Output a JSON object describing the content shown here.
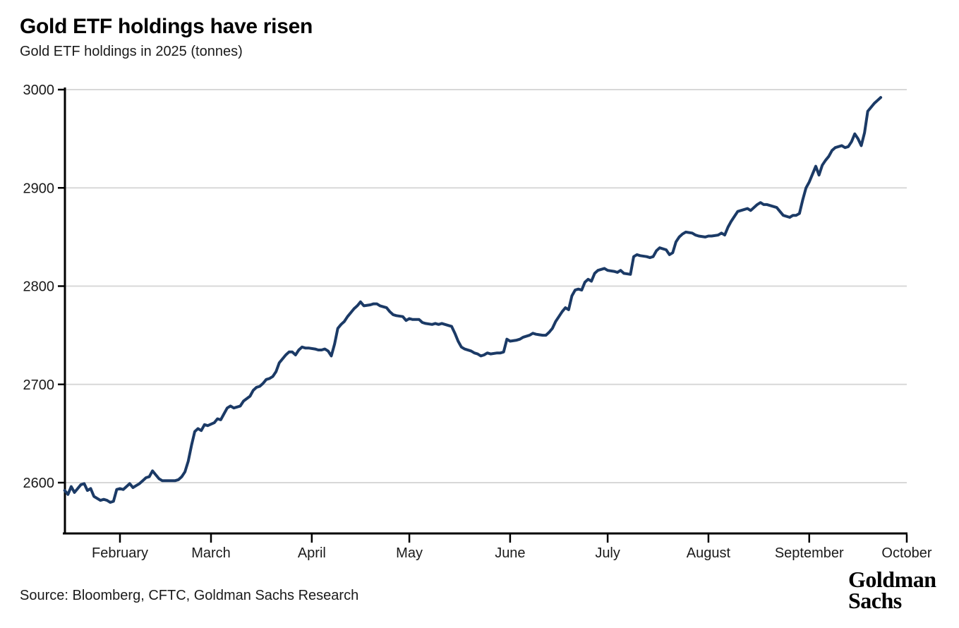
{
  "header": {
    "title": "Gold ETF holdings have risen",
    "subtitle": "Gold ETF holdings in 2025 (tonnes)"
  },
  "footer": {
    "source": "Source: Bloomberg, CFTC, Goldman Sachs Research",
    "logo_line1": "Goldman",
    "logo_line2": "Sachs"
  },
  "chart_data": {
    "type": "line",
    "title": "Gold ETF holdings have risen",
    "subtitle": "Gold ETF holdings in 2025 (tonnes)",
    "xlabel": "",
    "ylabel": "tonnes",
    "y_ticks": [
      2600,
      2700,
      2800,
      2900,
      3000
    ],
    "y_range": [
      2548,
      3000
    ],
    "x_range": [
      "Jan 15",
      "Oct 1"
    ],
    "x_ticks": [
      {
        "label": "February",
        "date": "Feb 1"
      },
      {
        "label": "March",
        "date": "Mar 1"
      },
      {
        "label": "April",
        "date": "Apr 1"
      },
      {
        "label": "May",
        "date": "May 1"
      },
      {
        "label": "June",
        "date": "Jun 1"
      },
      {
        "label": "July",
        "date": "Jul 1"
      },
      {
        "label": "August",
        "date": "Aug 1"
      },
      {
        "label": "September",
        "date": "Sep 1"
      },
      {
        "label": "October",
        "date": "Oct 1"
      }
    ],
    "grid": "horizontal",
    "grid_color": "#d8d8d8",
    "axis_color": "#000000",
    "label_color": "#1a1a1a",
    "legend": "none",
    "series": [
      {
        "name": "Gold ETF holdings (tonnes)",
        "color": "#1b3a66",
        "points": [
          [
            "Jan 15",
            2592
          ],
          [
            "Jan 16",
            2588
          ],
          [
            "Jan 17",
            2596
          ],
          [
            "Jan 18",
            2590
          ],
          [
            "Jan 19",
            2594
          ],
          [
            "Jan 20",
            2598
          ],
          [
            "Jan 21",
            2599
          ],
          [
            "Jan 22",
            2592
          ],
          [
            "Jan 23",
            2594
          ],
          [
            "Jan 24",
            2586
          ],
          [
            "Jan 25",
            2584
          ],
          [
            "Jan 26",
            2582
          ],
          [
            "Jan 27",
            2583
          ],
          [
            "Jan 28",
            2582
          ],
          [
            "Jan 29",
            2580
          ],
          [
            "Jan 30",
            2581
          ],
          [
            "Jan 31",
            2593
          ],
          [
            "Feb 1",
            2594
          ],
          [
            "Feb 2",
            2593
          ],
          [
            "Feb 3",
            2596
          ],
          [
            "Feb 4",
            2599
          ],
          [
            "Feb 5",
            2595
          ],
          [
            "Feb 6",
            2597
          ],
          [
            "Feb 7",
            2599
          ],
          [
            "Feb 8",
            2602
          ],
          [
            "Feb 9",
            2605
          ],
          [
            "Feb 10",
            2606
          ],
          [
            "Feb 11",
            2612
          ],
          [
            "Feb 12",
            2608
          ],
          [
            "Feb 13",
            2604
          ],
          [
            "Feb 14",
            2602
          ],
          [
            "Feb 15",
            2602
          ],
          [
            "Feb 17",
            2602
          ],
          [
            "Feb 18",
            2602
          ],
          [
            "Feb 19",
            2603
          ],
          [
            "Feb 20",
            2606
          ],
          [
            "Feb 21",
            2611
          ],
          [
            "Feb 22",
            2622
          ],
          [
            "Feb 23",
            2638
          ],
          [
            "Feb 24",
            2652
          ],
          [
            "Feb 25",
            2655
          ],
          [
            "Feb 26",
            2653
          ],
          [
            "Feb 27",
            2659
          ],
          [
            "Feb 28",
            2658
          ],
          [
            "Mar 2",
            2661
          ],
          [
            "Mar 3",
            2665
          ],
          [
            "Mar 4",
            2664
          ],
          [
            "Mar 5",
            2670
          ],
          [
            "Mar 6",
            2676
          ],
          [
            "Mar 7",
            2678
          ],
          [
            "Mar 8",
            2676
          ],
          [
            "Mar 9",
            2677
          ],
          [
            "Mar 10",
            2678
          ],
          [
            "Mar 11",
            2683
          ],
          [
            "Mar 13",
            2688
          ],
          [
            "Mar 14",
            2694
          ],
          [
            "Mar 15",
            2697
          ],
          [
            "Mar 16",
            2698
          ],
          [
            "Mar 17",
            2701
          ],
          [
            "Mar 18",
            2705
          ],
          [
            "Mar 19",
            2706
          ],
          [
            "Mar 20",
            2708
          ],
          [
            "Mar 21",
            2713
          ],
          [
            "Mar 22",
            2722
          ],
          [
            "Mar 24",
            2730
          ],
          [
            "Mar 25",
            2733
          ],
          [
            "Mar 26",
            2733
          ],
          [
            "Mar 27",
            2730
          ],
          [
            "Mar 28",
            2735
          ],
          [
            "Mar 29",
            2738
          ],
          [
            "Mar 30",
            2737
          ],
          [
            "Mar 31",
            2737
          ],
          [
            "Apr 2",
            2736
          ],
          [
            "Apr 3",
            2735
          ],
          [
            "Apr 4",
            2735
          ],
          [
            "Apr 5",
            2736
          ],
          [
            "Apr 6",
            2734
          ],
          [
            "Apr 7",
            2729
          ],
          [
            "Apr 8",
            2741
          ],
          [
            "Apr 9",
            2757
          ],
          [
            "Apr 10",
            2761
          ],
          [
            "Apr 11",
            2764
          ],
          [
            "Apr 12",
            2769
          ],
          [
            "Apr 13",
            2773
          ],
          [
            "Apr 14",
            2777
          ],
          [
            "Apr 15",
            2780
          ],
          [
            "Apr 16",
            2784
          ],
          [
            "Apr 17",
            2780
          ],
          [
            "Apr 19",
            2781
          ],
          [
            "Apr 20",
            2782
          ],
          [
            "Apr 21",
            2782
          ],
          [
            "Apr 22",
            2780
          ],
          [
            "Apr 24",
            2778
          ],
          [
            "Apr 25",
            2774
          ],
          [
            "Apr 26",
            2771
          ],
          [
            "Apr 27",
            2770
          ],
          [
            "Apr 29",
            2769
          ],
          [
            "Apr 30",
            2765
          ],
          [
            "May 1",
            2767
          ],
          [
            "May 2",
            2766
          ],
          [
            "May 4",
            2766
          ],
          [
            "May 5",
            2763
          ],
          [
            "May 6",
            2762
          ],
          [
            "May 8",
            2761
          ],
          [
            "May 9",
            2762
          ],
          [
            "May 10",
            2761
          ],
          [
            "May 11",
            2762
          ],
          [
            "May 13",
            2760
          ],
          [
            "May 14",
            2759
          ],
          [
            "May 15",
            2752
          ],
          [
            "May 16",
            2744
          ],
          [
            "May 17",
            2738
          ],
          [
            "May 18",
            2736
          ],
          [
            "May 20",
            2734
          ],
          [
            "May 21",
            2732
          ],
          [
            "May 22",
            2731
          ],
          [
            "May 23",
            2729
          ],
          [
            "May 24",
            2730
          ],
          [
            "May 25",
            2732
          ],
          [
            "May 26",
            2731
          ],
          [
            "May 28",
            2732
          ],
          [
            "May 29",
            2732
          ],
          [
            "May 30",
            2733
          ],
          [
            "May 31",
            2746
          ],
          [
            "Jun 1",
            2744
          ],
          [
            "Jun 3",
            2745
          ],
          [
            "Jun 4",
            2746
          ],
          [
            "Jun 5",
            2748
          ],
          [
            "Jun 7",
            2750
          ],
          [
            "Jun 8",
            2752
          ],
          [
            "Jun 9",
            2751
          ],
          [
            "Jun 11",
            2750
          ],
          [
            "Jun 12",
            2750
          ],
          [
            "Jun 13",
            2753
          ],
          [
            "Jun 14",
            2757
          ],
          [
            "Jun 15",
            2764
          ],
          [
            "Jun 16",
            2769
          ],
          [
            "Jun 17",
            2774
          ],
          [
            "Jun 18",
            2778
          ],
          [
            "Jun 19",
            2776
          ],
          [
            "Jun 20",
            2790
          ],
          [
            "Jun 21",
            2796
          ],
          [
            "Jun 22",
            2797
          ],
          [
            "Jun 23",
            2796
          ],
          [
            "Jun 24",
            2804
          ],
          [
            "Jun 25",
            2807
          ],
          [
            "Jun 26",
            2805
          ],
          [
            "Jun 27",
            2813
          ],
          [
            "Jun 28",
            2816
          ],
          [
            "Jun 29",
            2817
          ],
          [
            "Jun 30",
            2818
          ],
          [
            "Jul 1",
            2816
          ],
          [
            "Jul 3",
            2815
          ],
          [
            "Jul 4",
            2814
          ],
          [
            "Jul 5",
            2816
          ],
          [
            "Jul 6",
            2813
          ],
          [
            "Jul 8",
            2812
          ],
          [
            "Jul 9",
            2830
          ],
          [
            "Jul 10",
            2832
          ],
          [
            "Jul 11",
            2831
          ],
          [
            "Jul 13",
            2830
          ],
          [
            "Jul 14",
            2829
          ],
          [
            "Jul 15",
            2830
          ],
          [
            "Jul 16",
            2836
          ],
          [
            "Jul 17",
            2839
          ],
          [
            "Jul 19",
            2837
          ],
          [
            "Jul 20",
            2832
          ],
          [
            "Jul 21",
            2834
          ],
          [
            "Jul 22",
            2845
          ],
          [
            "Jul 23",
            2850
          ],
          [
            "Jul 24",
            2853
          ],
          [
            "Jul 25",
            2855
          ],
          [
            "Jul 27",
            2854
          ],
          [
            "Jul 28",
            2852
          ],
          [
            "Jul 29",
            2851
          ],
          [
            "Jul 31",
            2850
          ],
          [
            "Aug 1",
            2851
          ],
          [
            "Aug 2",
            2851
          ],
          [
            "Aug 4",
            2852
          ],
          [
            "Aug 5",
            2854
          ],
          [
            "Aug 6",
            2852
          ],
          [
            "Aug 7",
            2860
          ],
          [
            "Aug 8",
            2866
          ],
          [
            "Aug 9",
            2871
          ],
          [
            "Aug 10",
            2876
          ],
          [
            "Aug 12",
            2878
          ],
          [
            "Aug 13",
            2879
          ],
          [
            "Aug 14",
            2877
          ],
          [
            "Aug 16",
            2883
          ],
          [
            "Aug 17",
            2885
          ],
          [
            "Aug 18",
            2883
          ],
          [
            "Aug 19",
            2883
          ],
          [
            "Aug 21",
            2881
          ],
          [
            "Aug 22",
            2880
          ],
          [
            "Aug 23",
            2876
          ],
          [
            "Aug 24",
            2872
          ],
          [
            "Aug 26",
            2870
          ],
          [
            "Aug 27",
            2872
          ],
          [
            "Aug 28",
            2872
          ],
          [
            "Aug 29",
            2874
          ],
          [
            "Aug 30",
            2888
          ],
          [
            "Aug 31",
            2900
          ],
          [
            "Sep 1",
            2906
          ],
          [
            "Sep 2",
            2914
          ],
          [
            "Sep 3",
            2922
          ],
          [
            "Sep 4",
            2913
          ],
          [
            "Sep 5",
            2923
          ],
          [
            "Sep 6",
            2928
          ],
          [
            "Sep 7",
            2932
          ],
          [
            "Sep 8",
            2938
          ],
          [
            "Sep 9",
            2941
          ],
          [
            "Sep 10",
            2942
          ],
          [
            "Sep 11",
            2943
          ],
          [
            "Sep 12",
            2941
          ],
          [
            "Sep 13",
            2942
          ],
          [
            "Sep 14",
            2947
          ],
          [
            "Sep 15",
            2955
          ],
          [
            "Sep 16",
            2950
          ],
          [
            "Sep 17",
            2943
          ],
          [
            "Sep 18",
            2956
          ],
          [
            "Sep 19",
            2978
          ],
          [
            "Sep 20",
            2982
          ],
          [
            "Sep 21",
            2986
          ],
          [
            "Sep 22",
            2989
          ],
          [
            "Sep 23",
            2992
          ]
        ]
      }
    ]
  }
}
